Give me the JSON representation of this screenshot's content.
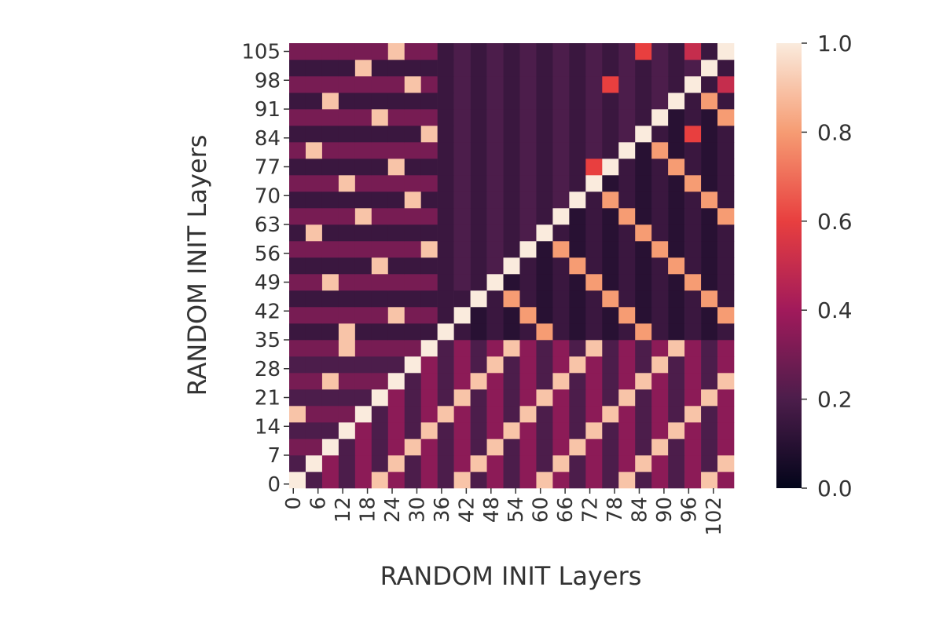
{
  "chart_data": {
    "type": "heatmap",
    "xlabel": "RANDOM INIT Layers",
    "ylabel": "RANDOM INIT Layers",
    "x": [
      1.5,
      5.5,
      9.5,
      13.5,
      17.5,
      21.5,
      25.5,
      29.5,
      33.5,
      37.5,
      41.5,
      45.5,
      49.5,
      53.5,
      57.5,
      61.5,
      65.5,
      69.5,
      73.5,
      77.5,
      81.5,
      85.5,
      89.5,
      93.5,
      97.5,
      101.5,
      105.5
    ],
    "y": [
      1.5,
      5.5,
      9.5,
      13.5,
      17.5,
      21.5,
      25.5,
      29.5,
      33.5,
      37.5,
      41.5,
      45.5,
      49.5,
      53.5,
      57.5,
      61.5,
      65.5,
      69.5,
      73.5,
      77.5,
      81.5,
      85.5,
      89.5,
      93.5,
      97.5,
      101.5,
      105.5
    ],
    "xlim": [
      -0.5,
      107.5
    ],
    "ylim": [
      -0.5,
      107.5
    ],
    "xticks": [
      0,
      6,
      12,
      18,
      24,
      30,
      36,
      42,
      48,
      54,
      60,
      66,
      72,
      78,
      84,
      90,
      96,
      102
    ],
    "yticks": [
      0,
      7,
      14,
      21,
      28,
      35,
      42,
      49,
      56,
      63,
      70,
      77,
      84,
      91,
      98,
      105
    ],
    "zlim": [
      0,
      1
    ],
    "zticks": [
      {
        "value": 0,
        "label": "0.0"
      },
      0.2,
      0.4,
      0.6,
      0.8,
      {
        "value": 1,
        "label": "1.0"
      }
    ],
    "colorscale": [
      "#03051a",
      "#4c1d4b",
      "#a11a5b",
      "#e83f3f",
      "#f69c73",
      "#faebdd"
    ],
    "z": [
      [
        1,
        0.2,
        0.35,
        0.2,
        0.35,
        0.9,
        0.35,
        0.2,
        0.35,
        0.2,
        0.9,
        0.2,
        0.35,
        0.2,
        0.35,
        0.9,
        0.35,
        0.2,
        0.35,
        0.2,
        0.9,
        0.2,
        0.35,
        0.2,
        0.35,
        0.9,
        0.35
      ],
      [
        0.2,
        1,
        0.35,
        0.2,
        0.35,
        0.2,
        0.9,
        0.2,
        0.35,
        0.2,
        0.35,
        0.9,
        0.35,
        0.2,
        0.35,
        0.2,
        0.9,
        0.2,
        0.35,
        0.2,
        0.35,
        0.9,
        0.35,
        0.2,
        0.35,
        0.2,
        0.9
      ],
      [
        0.3,
        0.3,
        1,
        0.2,
        0.35,
        0.2,
        0.35,
        0.9,
        0.35,
        0.2,
        0.35,
        0.2,
        0.9,
        0.2,
        0.35,
        0.2,
        0.35,
        0.9,
        0.35,
        0.2,
        0.35,
        0.2,
        0.9,
        0.2,
        0.35,
        0.2,
        0.35
      ],
      [
        0.2,
        0.2,
        0.2,
        1,
        0.35,
        0.2,
        0.35,
        0.2,
        0.9,
        0.2,
        0.35,
        0.2,
        0.35,
        0.9,
        0.35,
        0.2,
        0.35,
        0.2,
        0.9,
        0.2,
        0.35,
        0.2,
        0.35,
        0.9,
        0.35,
        0.2,
        0.35
      ],
      [
        0.9,
        0.3,
        0.3,
        0.3,
        1,
        0.2,
        0.35,
        0.2,
        0.35,
        0.9,
        0.35,
        0.2,
        0.35,
        0.2,
        0.9,
        0.2,
        0.35,
        0.2,
        0.35,
        0.9,
        0.35,
        0.2,
        0.35,
        0.2,
        0.9,
        0.2,
        0.35
      ],
      [
        0.2,
        0.2,
        0.2,
        0.2,
        0.2,
        1,
        0.35,
        0.2,
        0.35,
        0.2,
        0.9,
        0.2,
        0.35,
        0.2,
        0.35,
        0.9,
        0.35,
        0.2,
        0.35,
        0.2,
        0.9,
        0.2,
        0.35,
        0.2,
        0.35,
        0.9,
        0.35
      ],
      [
        0.3,
        0.3,
        0.9,
        0.3,
        0.3,
        0.3,
        1,
        0.2,
        0.35,
        0.2,
        0.35,
        0.9,
        0.35,
        0.2,
        0.35,
        0.2,
        0.9,
        0.2,
        0.35,
        0.2,
        0.35,
        0.9,
        0.35,
        0.2,
        0.35,
        0.2,
        0.9
      ],
      [
        0.2,
        0.2,
        0.2,
        0.2,
        0.2,
        0.2,
        0.2,
        1,
        0.35,
        0.2,
        0.35,
        0.2,
        0.9,
        0.2,
        0.35,
        0.2,
        0.35,
        0.9,
        0.35,
        0.2,
        0.35,
        0.2,
        0.9,
        0.2,
        0.35,
        0.2,
        0.35
      ],
      [
        0.3,
        0.3,
        0.3,
        0.9,
        0.3,
        0.3,
        0.3,
        0.3,
        1,
        0.2,
        0.35,
        0.2,
        0.35,
        0.9,
        0.35,
        0.2,
        0.35,
        0.2,
        0.9,
        0.2,
        0.35,
        0.2,
        0.35,
        0.9,
        0.35,
        0.2,
        0.35
      ],
      [
        0.15,
        0.15,
        0.15,
        0.9,
        0.15,
        0.15,
        0.15,
        0.15,
        0.15,
        1,
        0.15,
        0.1,
        0.15,
        0.1,
        0.15,
        0.8,
        0.15,
        0.1,
        0.15,
        0.1,
        0.15,
        0.8,
        0.15,
        0.1,
        0.15,
        0.1,
        0.15
      ],
      [
        0.3,
        0.3,
        0.3,
        0.3,
        0.3,
        0.3,
        0.9,
        0.3,
        0.3,
        0.15,
        1,
        0.1,
        0.15,
        0.1,
        0.8,
        0.1,
        0.15,
        0.1,
        0.15,
        0.1,
        0.8,
        0.1,
        0.15,
        0.1,
        0.15,
        0.1,
        0.8
      ],
      [
        0.15,
        0.15,
        0.15,
        0.15,
        0.15,
        0.15,
        0.15,
        0.15,
        0.15,
        0.15,
        0.15,
        1,
        0.15,
        0.8,
        0.15,
        0.1,
        0.15,
        0.1,
        0.15,
        0.8,
        0.15,
        0.1,
        0.15,
        0.1,
        0.15,
        0.8,
        0.15
      ],
      [
        0.3,
        0.3,
        0.9,
        0.3,
        0.3,
        0.3,
        0.3,
        0.3,
        0.3,
        0.15,
        0.2,
        0.15,
        1,
        0.1,
        0.15,
        0.1,
        0.15,
        0.1,
        0.8,
        0.1,
        0.15,
        0.1,
        0.15,
        0.1,
        0.8,
        0.1,
        0.15
      ],
      [
        0.15,
        0.15,
        0.15,
        0.15,
        0.15,
        0.9,
        0.15,
        0.15,
        0.15,
        0.15,
        0.2,
        0.15,
        0.2,
        1,
        0.15,
        0.1,
        0.15,
        0.8,
        0.15,
        0.1,
        0.15,
        0.1,
        0.15,
        0.8,
        0.15,
        0.1,
        0.15
      ],
      [
        0.3,
        0.3,
        0.3,
        0.3,
        0.3,
        0.3,
        0.3,
        0.3,
        0.9,
        0.15,
        0.2,
        0.15,
        0.2,
        0.15,
        1,
        0.1,
        0.8,
        0.1,
        0.15,
        0.1,
        0.15,
        0.1,
        0.8,
        0.1,
        0.15,
        0.1,
        0.15
      ],
      [
        0.15,
        0.9,
        0.15,
        0.15,
        0.15,
        0.15,
        0.15,
        0.15,
        0.15,
        0.15,
        0.2,
        0.15,
        0.2,
        0.15,
        0.2,
        1,
        0.15,
        0.1,
        0.15,
        0.1,
        0.15,
        0.8,
        0.15,
        0.1,
        0.15,
        0.1,
        0.15
      ],
      [
        0.3,
        0.3,
        0.3,
        0.3,
        0.9,
        0.3,
        0.3,
        0.3,
        0.3,
        0.15,
        0.2,
        0.15,
        0.2,
        0.15,
        0.2,
        0.15,
        1,
        0.1,
        0.15,
        0.1,
        0.8,
        0.1,
        0.15,
        0.1,
        0.15,
        0.1,
        0.8
      ],
      [
        0.15,
        0.15,
        0.15,
        0.15,
        0.15,
        0.15,
        0.15,
        0.9,
        0.15,
        0.15,
        0.2,
        0.15,
        0.2,
        0.15,
        0.2,
        0.15,
        0.2,
        1,
        0.15,
        0.8,
        0.15,
        0.1,
        0.15,
        0.1,
        0.15,
        0.8,
        0.15
      ],
      [
        0.3,
        0.3,
        0.3,
        0.9,
        0.3,
        0.3,
        0.3,
        0.3,
        0.3,
        0.15,
        0.2,
        0.15,
        0.2,
        0.15,
        0.2,
        0.15,
        0.2,
        0.15,
        1,
        0.1,
        0.15,
        0.1,
        0.15,
        0.1,
        0.8,
        0.1,
        0.15
      ],
      [
        0.15,
        0.15,
        0.15,
        0.15,
        0.15,
        0.15,
        0.9,
        0.15,
        0.15,
        0.15,
        0.2,
        0.15,
        0.2,
        0.15,
        0.2,
        0.15,
        0.2,
        0.15,
        0.6,
        1,
        0.15,
        0.1,
        0.15,
        0.8,
        0.15,
        0.1,
        0.15
      ],
      [
        0.3,
        0.9,
        0.3,
        0.3,
        0.3,
        0.3,
        0.3,
        0.3,
        0.3,
        0.15,
        0.2,
        0.15,
        0.2,
        0.15,
        0.2,
        0.15,
        0.2,
        0.15,
        0.2,
        0.15,
        1,
        0.1,
        0.8,
        0.1,
        0.15,
        0.1,
        0.15
      ],
      [
        0.15,
        0.15,
        0.15,
        0.15,
        0.15,
        0.15,
        0.15,
        0.15,
        0.9,
        0.15,
        0.2,
        0.15,
        0.2,
        0.15,
        0.2,
        0.15,
        0.2,
        0.15,
        0.2,
        0.15,
        0.2,
        1,
        0.15,
        0.1,
        0.6,
        0.1,
        0.15
      ],
      [
        0.3,
        0.3,
        0.3,
        0.3,
        0.3,
        0.9,
        0.3,
        0.3,
        0.3,
        0.15,
        0.2,
        0.15,
        0.2,
        0.15,
        0.2,
        0.15,
        0.2,
        0.15,
        0.2,
        0.15,
        0.2,
        0.15,
        1,
        0.1,
        0.15,
        0.1,
        0.8
      ],
      [
        0.15,
        0.15,
        0.9,
        0.15,
        0.15,
        0.15,
        0.15,
        0.15,
        0.15,
        0.15,
        0.2,
        0.15,
        0.2,
        0.15,
        0.2,
        0.15,
        0.2,
        0.15,
        0.2,
        0.15,
        0.2,
        0.15,
        0.2,
        1,
        0.15,
        0.8,
        0.15
      ],
      [
        0.3,
        0.3,
        0.3,
        0.3,
        0.3,
        0.3,
        0.3,
        0.9,
        0.3,
        0.15,
        0.2,
        0.15,
        0.2,
        0.15,
        0.2,
        0.15,
        0.2,
        0.15,
        0.2,
        0.6,
        0.2,
        0.15,
        0.2,
        0.15,
        1,
        0.15,
        0.5
      ],
      [
        0.15,
        0.15,
        0.15,
        0.15,
        0.9,
        0.15,
        0.15,
        0.15,
        0.15,
        0.15,
        0.2,
        0.15,
        0.2,
        0.15,
        0.2,
        0.15,
        0.2,
        0.15,
        0.2,
        0.15,
        0.2,
        0.15,
        0.2,
        0.15,
        0.2,
        1,
        0.15
      ],
      [
        0.3,
        0.3,
        0.3,
        0.3,
        0.3,
        0.3,
        0.9,
        0.3,
        0.3,
        0.15,
        0.2,
        0.15,
        0.2,
        0.15,
        0.2,
        0.15,
        0.2,
        0.15,
        0.2,
        0.15,
        0.2,
        0.6,
        0.2,
        0.15,
        0.5,
        0.15,
        1
      ]
    ]
  }
}
